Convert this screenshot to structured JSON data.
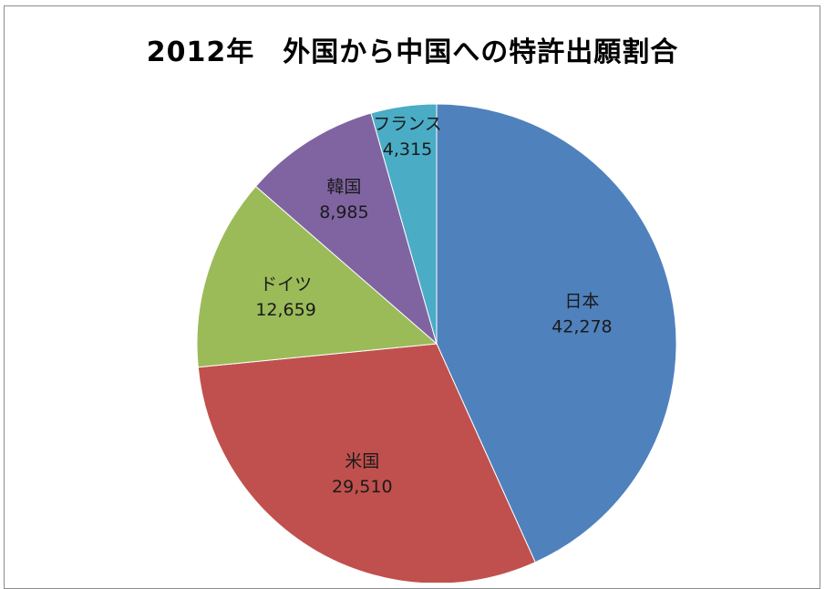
{
  "chart_data": {
    "type": "pie",
    "title": "2012年　外国から中国への特許出願割合",
    "slices": [
      {
        "label": "日本",
        "value": 42278,
        "value_text": "42,278",
        "color": "#4f81bd"
      },
      {
        "label": "米国",
        "value": 29510,
        "value_text": "29,510",
        "color": "#c0504d"
      },
      {
        "label": "ドイツ",
        "value": 12659,
        "value_text": "12,659",
        "color": "#9bbb59"
      },
      {
        "label": "韓国",
        "value": 8985,
        "value_text": "8,985",
        "color": "#8064a2"
      },
      {
        "label": "フランス",
        "value": 4315,
        "value_text": "4,315",
        "color": "#4bacc6"
      }
    ],
    "start_angle": "12 o'clock",
    "direction": "clockwise",
    "legend": "none",
    "data_labels": "inside slices, name and value"
  }
}
